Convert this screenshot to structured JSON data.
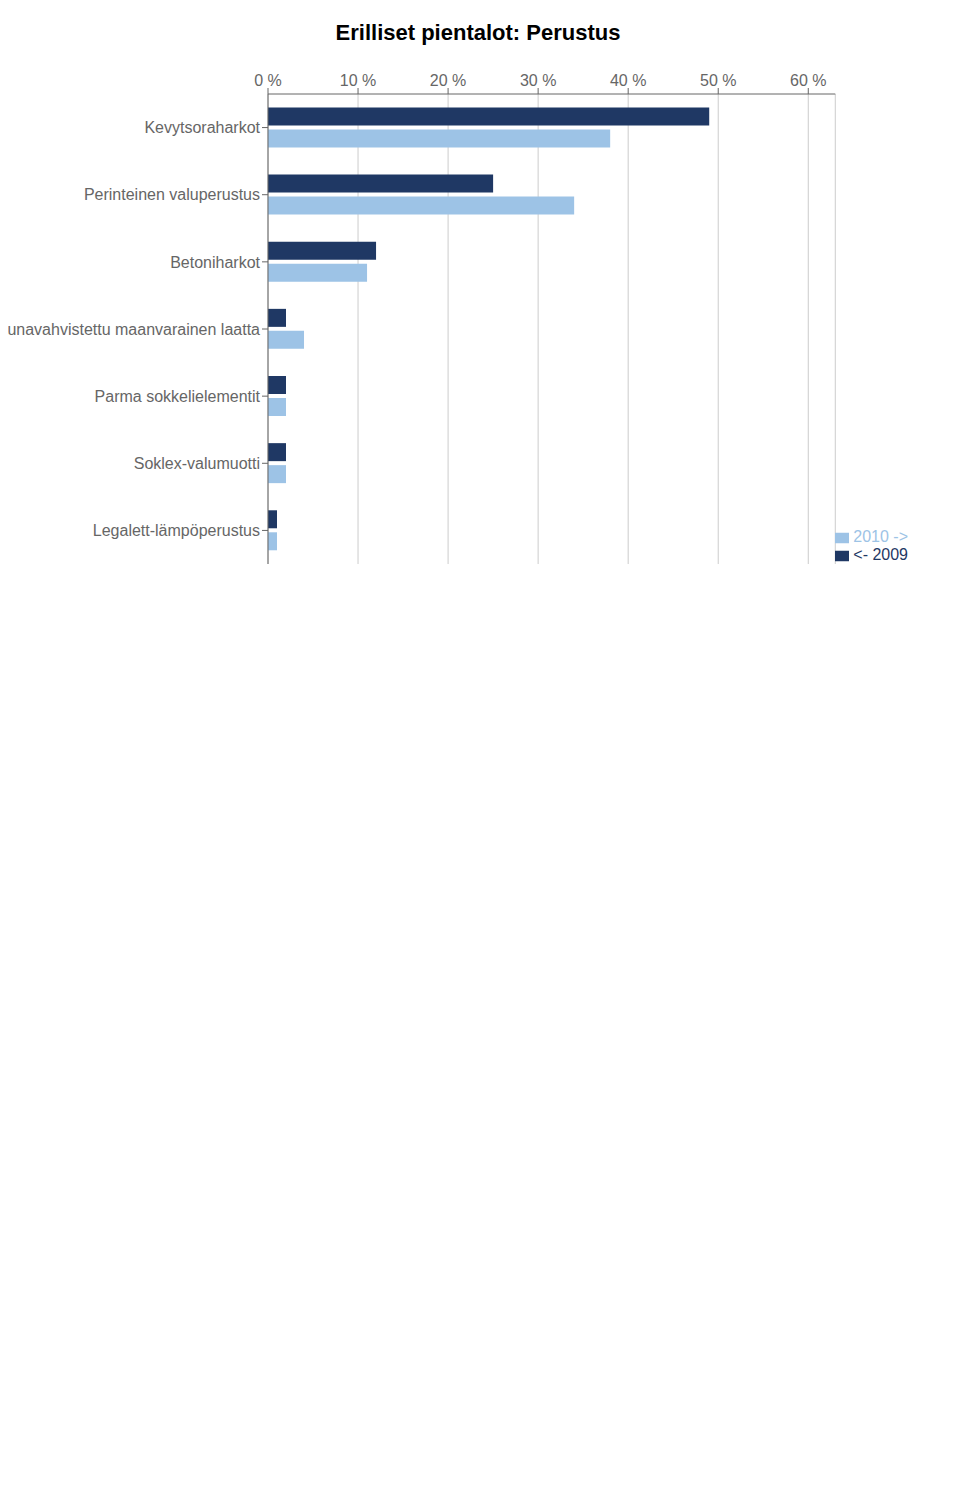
{
  "chart_data": {
    "type": "bar",
    "title": "Erilliset pientalot: Perustus",
    "orientation": "horizontal",
    "categories": [
      "Kevytsoraharkot",
      "Perinteinen valuperustus",
      "Betoniharkot",
      "Reunavahvistettu maanvarainen laatta",
      "Parma sokkelielementit",
      "Soklex-valumuotti",
      "Legalett-lämpöperustus"
    ],
    "series": [
      {
        "name": "<- 2009",
        "color": "#1F3864",
        "values": [
          49,
          25,
          12,
          2,
          2,
          2,
          1
        ]
      },
      {
        "name": "2010 ->",
        "color": "#9DC3E6",
        "values": [
          38,
          34,
          11,
          4,
          2,
          2,
          1
        ]
      }
    ],
    "xlim": [
      0,
      63
    ],
    "xticks": [
      {
        "value": 0,
        "label": "0 %"
      },
      {
        "value": 10,
        "label": "10 %"
      },
      {
        "value": 20,
        "label": "20 %"
      },
      {
        "value": 30,
        "label": "30 %"
      },
      {
        "value": 40,
        "label": "40 %"
      },
      {
        "value": 50,
        "label": "50 %"
      },
      {
        "value": 60,
        "label": "60 %"
      }
    ],
    "grid": true,
    "legend": "lower right"
  }
}
